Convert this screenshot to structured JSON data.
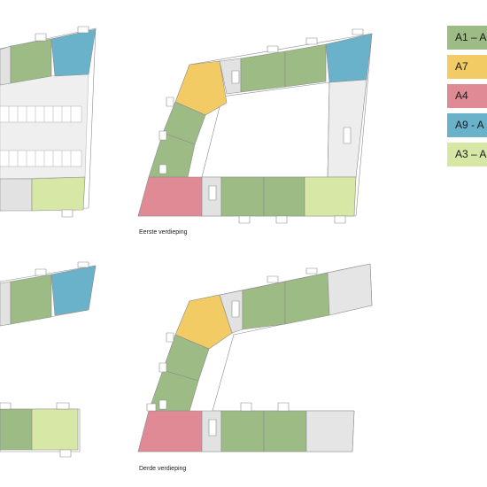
{
  "labels": {
    "first_floor": "Eerste verdieping",
    "third_floor": "Derde verdieping"
  },
  "legend": [
    {
      "label": "A1 – A",
      "color": "#9cbb85"
    },
    {
      "label": "A7",
      "color": "#f2cb64"
    },
    {
      "label": "A4",
      "color": "#e08a95"
    },
    {
      "label": "A9 - A",
      "color": "#6ab2c9"
    },
    {
      "label": "A3 – A",
      "color": "#d7e7a5"
    }
  ],
  "colors": {
    "green": "#9cbb85",
    "yellow": "#f2cb64",
    "pink": "#e08a95",
    "blue": "#6ab2c9",
    "light_green": "#d7e7a5",
    "grey": "#e5e5e5",
    "outline": "#8c8c8c"
  }
}
